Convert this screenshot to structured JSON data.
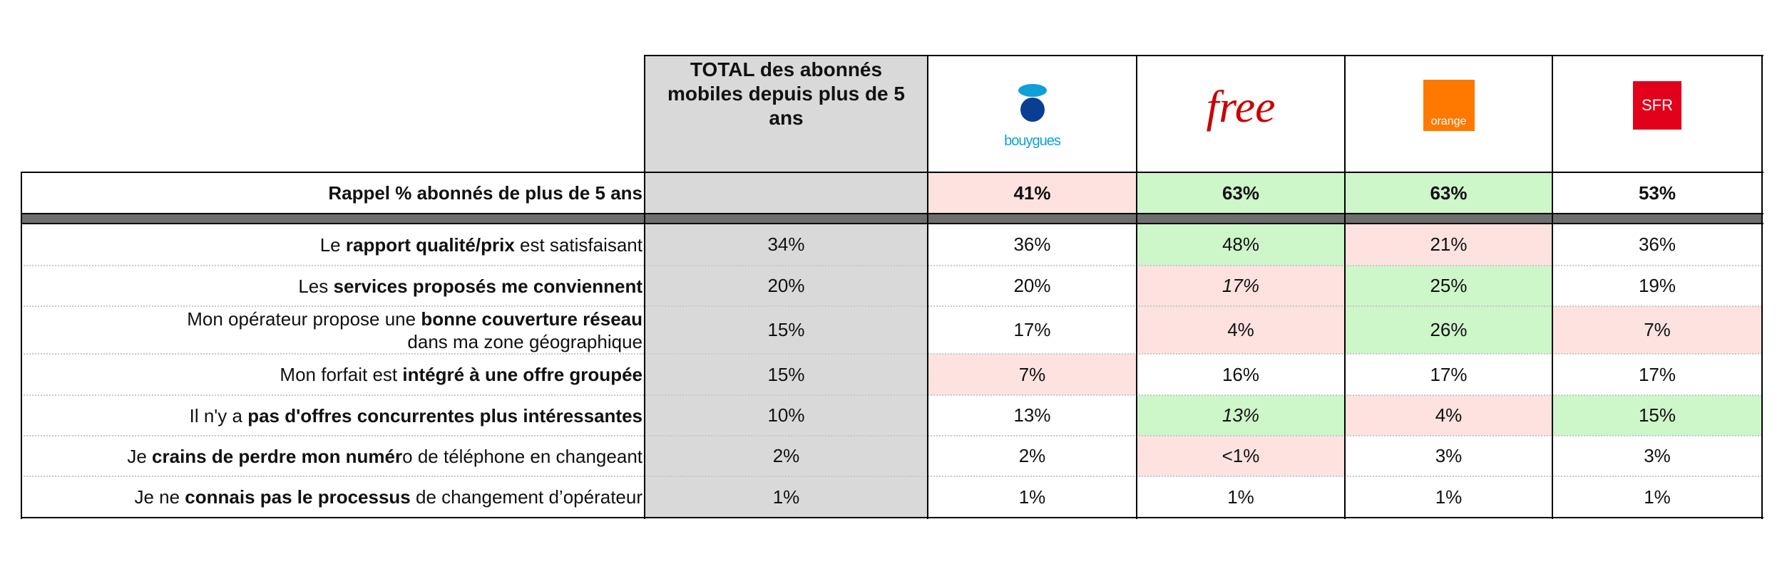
{
  "header": {
    "total": "TOTAL des abonnés mobiles depuis plus de 5 ans",
    "logos": [
      "bouygues",
      "free",
      "orange",
      "SFR"
    ]
  },
  "reminder": {
    "label": [
      [
        {
          "text": "Rappel % abonnés de plus de 5 ans",
          "bold": true
        }
      ]
    ],
    "cells": [
      null,
      {
        "text": "41%",
        "bg": "red",
        "bold": true
      },
      {
        "text": "63%",
        "bg": "green",
        "bold": true
      },
      {
        "text": "63%",
        "bg": "green",
        "bold": true
      },
      {
        "text": "53%",
        "bold": true
      }
    ]
  },
  "rows": [
    {
      "label": [
        [
          {
            "text": "Le ",
            "bold": false
          },
          {
            "text": "rapport qualité/prix",
            "bold": true
          },
          {
            "text": " est satisfaisant",
            "bold": false
          }
        ]
      ],
      "cells": [
        {
          "text": "34%"
        },
        {
          "text": "36%"
        },
        {
          "text": "48%",
          "bg": "green"
        },
        {
          "text": "21%",
          "bg": "red"
        },
        {
          "text": "36%"
        }
      ]
    },
    {
      "label": [
        [
          {
            "text": "Les ",
            "bold": false
          },
          {
            "text": "services proposés me conviennent",
            "bold": true
          }
        ]
      ],
      "cells": [
        {
          "text": "20%"
        },
        {
          "text": "20%"
        },
        {
          "text": "17%",
          "bg": "red",
          "italic": true
        },
        {
          "text": "25%",
          "bg": "green"
        },
        {
          "text": "19%"
        }
      ]
    },
    {
      "label": [
        [
          {
            "text": "Mon opérateur propose une ",
            "bold": false
          },
          {
            "text": "bonne couverture réseau",
            "bold": true
          }
        ],
        [
          {
            "text": "dans ma zone géographique",
            "bold": false
          }
        ]
      ],
      "cells": [
        {
          "text": "15%"
        },
        {
          "text": "17%"
        },
        {
          "text": "4%",
          "bg": "red"
        },
        {
          "text": "26%",
          "bg": "green"
        },
        {
          "text": "7%",
          "bg": "red"
        }
      ]
    },
    {
      "label": [
        [
          {
            "text": "Mon forfait est ",
            "bold": false
          },
          {
            "text": "intégré à une offre groupée",
            "bold": true
          }
        ]
      ],
      "cells": [
        {
          "text": "15%"
        },
        {
          "text": "7%",
          "bg": "red"
        },
        {
          "text": "16%"
        },
        {
          "text": "17%"
        },
        {
          "text": "17%"
        }
      ]
    },
    {
      "label": [
        [
          {
            "text": "Il n'y a ",
            "bold": false
          },
          {
            "text": "pas d'offres concurrentes plus intéressantes",
            "bold": true
          }
        ]
      ],
      "cells": [
        {
          "text": "10%"
        },
        {
          "text": "13%"
        },
        {
          "text": "13%",
          "bg": "green",
          "italic": true
        },
        {
          "text": "4%",
          "bg": "red"
        },
        {
          "text": "15%",
          "bg": "green"
        }
      ]
    },
    {
      "label": [
        [
          {
            "text": "Je ",
            "bold": false
          },
          {
            "text": "crains de perdre mon numér",
            "bold": true
          },
          {
            "text": "o de téléphone en changeant",
            "bold": false
          }
        ]
      ],
      "cells": [
        {
          "text": "2%"
        },
        {
          "text": "2%"
        },
        {
          "text": "<1%",
          "bg": "red"
        },
        {
          "text": "3%"
        },
        {
          "text": "3%"
        }
      ]
    },
    {
      "label": [
        [
          {
            "text": "Je ne ",
            "bold": false
          },
          {
            "text": "connais pas le processus",
            "bold": true
          },
          {
            "text": " de changement d’opérateur",
            "bold": false
          }
        ]
      ],
      "cells": [
        {
          "text": "1%"
        },
        {
          "text": "1%"
        },
        {
          "text": "1%"
        },
        {
          "text": "1%"
        },
        {
          "text": "1%"
        }
      ]
    }
  ]
}
